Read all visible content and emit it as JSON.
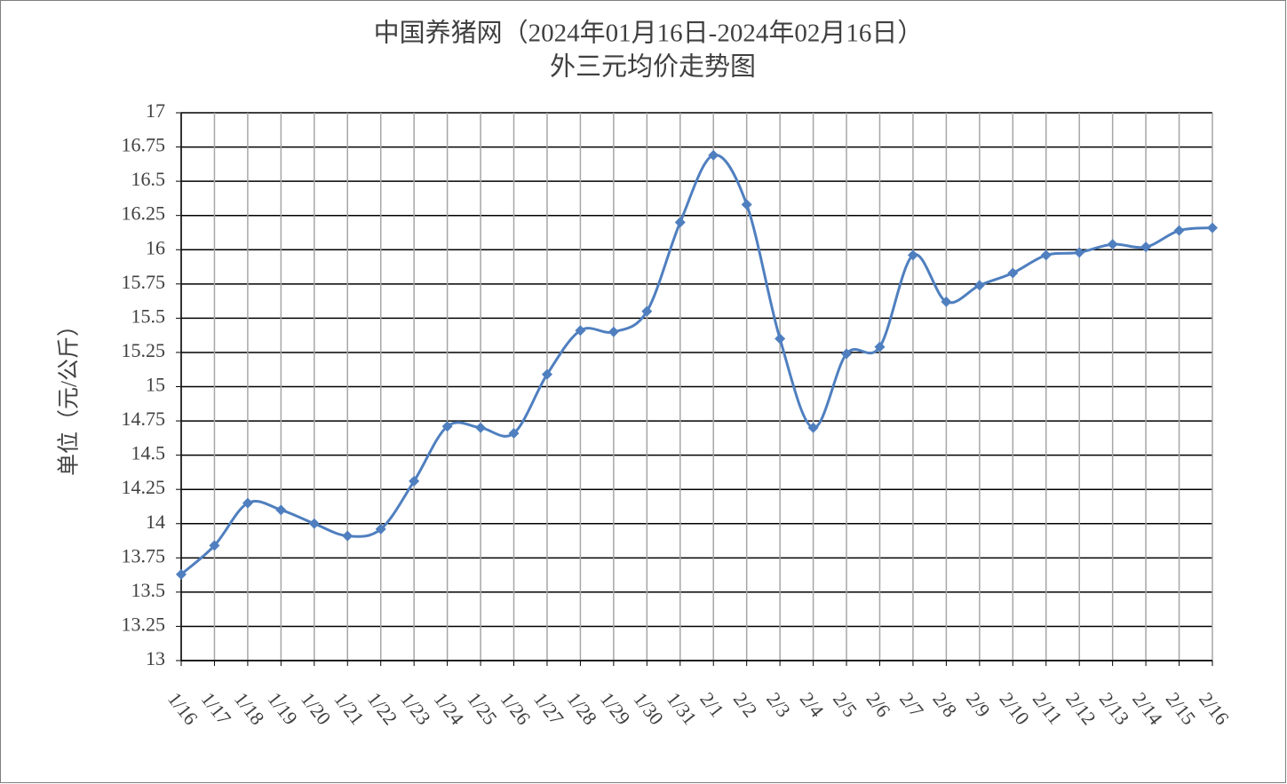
{
  "chart_data": {
    "type": "line",
    "title": "中国养猪网（2024年01月16日-2024年02月16日）",
    "subtitle": "外三元均价走势图",
    "y_label": "单位（元/公斤）",
    "categories": [
      "1/16",
      "1/17",
      "1/18",
      "1/19",
      "1/20",
      "1/21",
      "1/22",
      "1/23",
      "1/24",
      "1/25",
      "1/26",
      "1/27",
      "1/28",
      "1/29",
      "1/30",
      "1/31",
      "2/1",
      "2/2",
      "2/3",
      "2/4",
      "2/5",
      "2/6",
      "2/7",
      "2/8",
      "2/9",
      "2/10",
      "2/11",
      "2/12",
      "2/13",
      "2/14",
      "2/15",
      "2/16"
    ],
    "series": [
      {
        "name": "外三元",
        "color": "#4f7fbf",
        "values": [
          13.63,
          13.84,
          14.15,
          14.1,
          14.0,
          13.91,
          13.96,
          14.31,
          14.71,
          14.7,
          14.66,
          15.09,
          15.41,
          15.4,
          15.55,
          16.2,
          16.69,
          16.33,
          15.35,
          14.7,
          15.24,
          15.29,
          15.96,
          15.62,
          15.74,
          15.83,
          15.96,
          15.98,
          16.04,
          16.02,
          16.14,
          16.16
        ]
      }
    ],
    "ylim": [
      13,
      17
    ],
    "yticks": [
      13,
      13.25,
      13.5,
      13.75,
      14,
      14.25,
      14.5,
      14.75,
      15,
      15.25,
      15.5,
      15.75,
      16,
      16.25,
      16.5,
      16.75,
      17
    ],
    "grid": true
  }
}
